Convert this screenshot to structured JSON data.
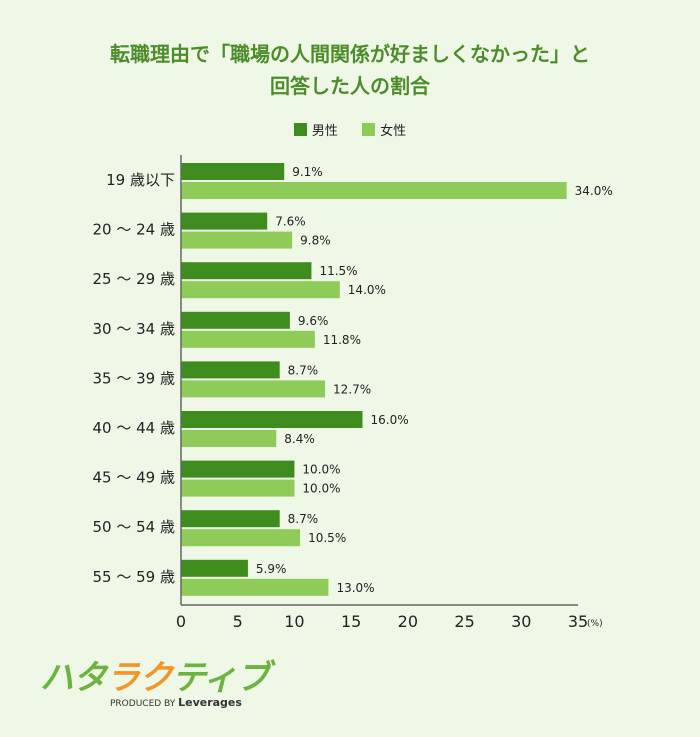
{
  "chart_data": {
    "type": "bar",
    "orientation": "horizontal",
    "title": "転職理由で「職場の人間関係が好ましくなかった」と回答した人の割合",
    "title_lines": [
      "転職理由で「職場の人間関係が好ましくなかった」と",
      "回答した人の割合"
    ],
    "categories": [
      "19 歳以下",
      "20 ～ 24 歳",
      "25 ～ 29 歳",
      "30 ～ 34 歳",
      "35 ～ 39 歳",
      "40 ～ 44 歳",
      "45 ～ 49 歳",
      "50 ～ 54 歳",
      "55 ～ 59 歳"
    ],
    "series": [
      {
        "name": "男性",
        "color": "#3f8c1e",
        "values": [
          9.1,
          7.6,
          11.5,
          9.6,
          8.7,
          16.0,
          10.0,
          8.7,
          5.9
        ]
      },
      {
        "name": "女性",
        "color": "#8fcb58",
        "values": [
          34.0,
          9.8,
          14.0,
          11.8,
          12.7,
          8.4,
          10.0,
          10.5,
          13.0
        ]
      }
    ],
    "xlim": [
      0,
      35
    ],
    "xticks": [
      0,
      5,
      10,
      15,
      20,
      25,
      30,
      35
    ],
    "xunit": "(%)",
    "legend": "top-center",
    "grid": false
  },
  "logo": {
    "text": "ハタラクティブ",
    "byline": "PRODUCED BY",
    "brand": "Leverages"
  }
}
